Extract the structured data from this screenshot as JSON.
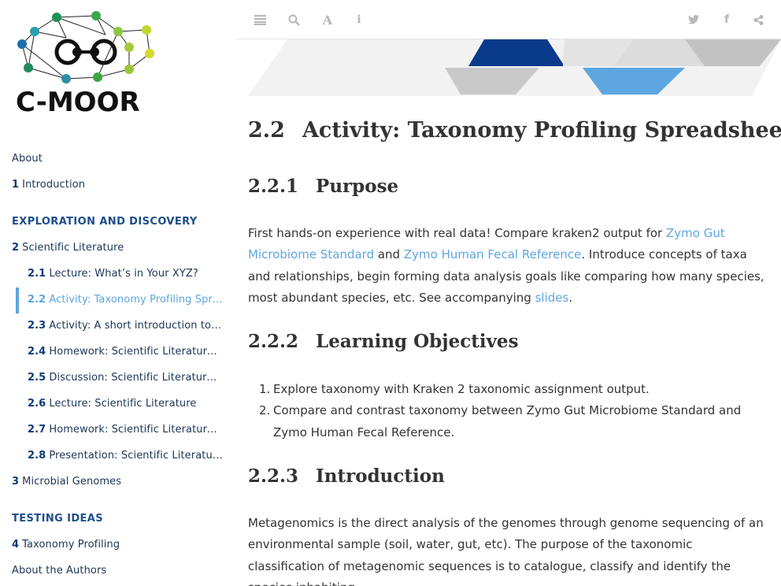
{
  "logo": {
    "text": "C-MOOR"
  },
  "toolbar": {
    "toggle_icon": "hamburger-icon",
    "search_icon": "search-icon",
    "font_icon": "font-icon",
    "info_icon": "info-icon",
    "twitter_icon": "twitter-icon",
    "facebook_icon": "facebook-icon",
    "share_icon": "share-icon"
  },
  "sidebar": {
    "about": "About",
    "ch1": {
      "num": "1",
      "label": "Introduction"
    },
    "part1": "EXPLORATION AND DISCOVERY",
    "ch2": {
      "num": "2",
      "label": "Scientific Literature"
    },
    "sub": [
      {
        "num": "2.1",
        "label": "Lecture: What’s in Your XYZ?"
      },
      {
        "num": "2.2",
        "label": "Activity: Taxonomy Profiling Spreadsheet"
      },
      {
        "num": "2.3",
        "label": "Activity: A short introduction to Genomes"
      },
      {
        "num": "2.4",
        "label": "Homework: Scientific Literature Primer"
      },
      {
        "num": "2.5",
        "label": "Discussion: Scientific Literature Primer"
      },
      {
        "num": "2.6",
        "label": "Lecture: Scientific Literature"
      },
      {
        "num": "2.7",
        "label": "Homework: Scientific Literature Assignment"
      },
      {
        "num": "2.8",
        "label": "Presentation: Scientific Literature Review"
      }
    ],
    "ch3": {
      "num": "3",
      "label": "Microbial Genomes"
    },
    "part2": "TESTING IDEAS",
    "ch4": {
      "num": "4",
      "label": "Taxonomy Profiling"
    },
    "authors": "About the Authors"
  },
  "content": {
    "title_num": "2.2",
    "title": "Activity: Taxonomy Profiling Spreadsheet",
    "s1_num": "2.2.1",
    "s1_title": "Purpose",
    "p1_a": "First hands-on experience with real data! Compare kraken2 output for ",
    "p1_link1": "Zymo Gut Microbiome Standard",
    "p1_b": " and ",
    "p1_link2": "Zymo Human Fecal Reference",
    "p1_c": ". Introduce concepts of taxa and relationships, begin forming data analysis goals like comparing how many species, most abundant species, etc. See accompanying ",
    "p1_link3": "slides",
    "p1_d": ".",
    "s2_num": "2.2.2",
    "s2_title": "Learning Objectives",
    "objectives": [
      "Explore taxonomy with Kraken 2 taxonomic assignment output.",
      "Compare and contrast taxonomy between Zymo Gut Microbiome Standard and Zymo Human Fecal Reference."
    ],
    "s3_num": "2.2.3",
    "s3_title": "Introduction",
    "p2": "Metagenomics is the direct analysis of the genomes through genome sequencing of an environmental sample (soil, water, gut, etc). The purpose of the taxonomic classification of metagenomic sequences is to catalogue, classify and identify the species inhabiting"
  }
}
